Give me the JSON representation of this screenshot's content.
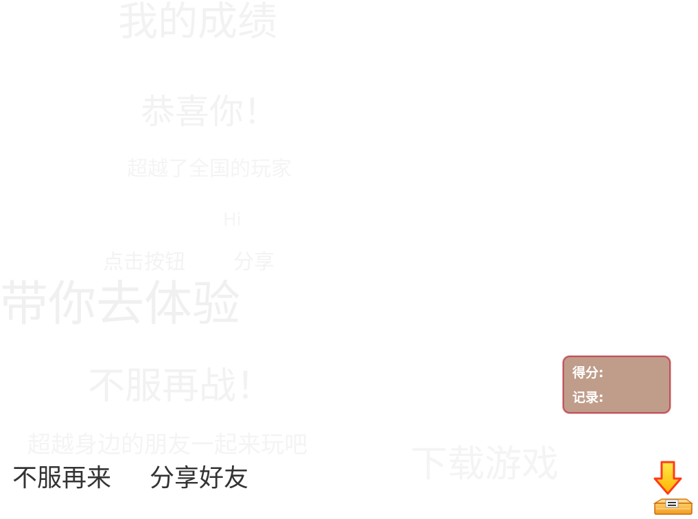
{
  "background_text": {
    "line1": "我的成绩",
    "line2": "恭喜你！",
    "line3": "超越了全国的玩家",
    "line4": "Hi",
    "line5a": "点击按钮",
    "line5b": "分享",
    "line6": "带你去体验",
    "line7": "不服再战！",
    "line8": "超越身边的朋友一起来玩吧",
    "line9": "下载游戏"
  },
  "score_panel": {
    "score_label": "得分:",
    "record_label": "记录:",
    "border_color": "#c0545c",
    "fill_color": "#c09d8a"
  },
  "buttons": {
    "retry_label": "不服再来",
    "share_label": "分享好友"
  },
  "icons": {
    "download": "download-box-icon"
  }
}
